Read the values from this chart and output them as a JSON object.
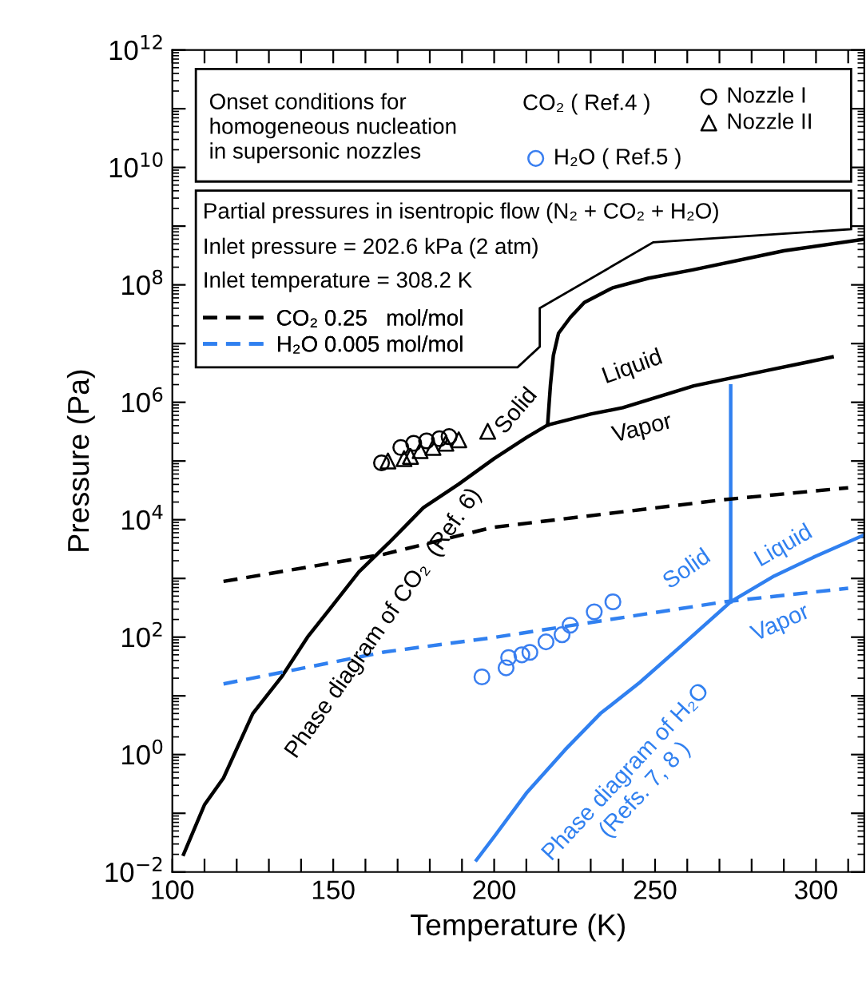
{
  "chart_data": {
    "type": "line",
    "xlabel": "Temperature (K)",
    "ylabel": "Pressure (Pa)",
    "log": "y",
    "xlim": [
      100,
      315
    ],
    "ylim": [
      0.01,
      1000000000000.0
    ],
    "xticks": [
      100,
      {
        "value": 110,
        "label": null
      },
      {
        "value": 120,
        "label": null
      },
      {
        "value": 130,
        "label": null
      },
      {
        "value": 140,
        "label": null
      },
      150,
      {
        "value": 160,
        "label": null
      },
      {
        "value": 170,
        "label": null
      },
      {
        "value": 180,
        "label": null
      },
      {
        "value": 190,
        "label": null
      },
      200,
      {
        "value": 210,
        "label": null
      },
      {
        "value": 220,
        "label": null
      },
      {
        "value": 230,
        "label": null
      },
      {
        "value": 240,
        "label": null
      },
      250,
      {
        "value": 260,
        "label": null
      },
      {
        "value": 270,
        "label": null
      },
      {
        "value": 280,
        "label": null
      },
      {
        "value": 290,
        "label": null
      },
      300,
      {
        "value": 310,
        "label": null
      }
    ],
    "yticks": [
      {
        "value": 0.01,
        "label": "10$^{−2}$"
      },
      {
        "value": 0.1,
        "label": null
      },
      {
        "value": 1,
        "label": "10$^{0}$"
      },
      {
        "value": 10,
        "label": null
      },
      {
        "value": 100,
        "label": "10$^{2}$"
      },
      {
        "value": 1000,
        "label": null
      },
      {
        "value": 10000,
        "label": "10$^{4}$"
      },
      {
        "value": 100000,
        "label": null
      },
      {
        "value": 1000000,
        "label": "10$^{6}$"
      },
      {
        "value": 10000000,
        "label": null
      },
      {
        "value": 100000000,
        "label": "10$^{8}$"
      },
      {
        "value": 1000000000,
        "label": null
      },
      {
        "value": 10000000000,
        "label": "10$^{10}$"
      },
      {
        "value": 100000000000,
        "label": null
      },
      {
        "value": 1000000000000,
        "label": "10$^{12}$"
      }
    ],
    "grid": false,
    "legend": "top left",
    "series": [
      {
        "color": "#000000",
        "line_style": "solid",
        "x": [
          103.5,
          110,
          115.9,
          125,
          134.2,
          142,
          150.7,
          158,
          167.2,
          178,
          188.9,
          200,
          210,
          216.6,
          230,
          240,
          262,
          285,
          305
        ],
        "values": [
          0.02,
          0.14,
          0.4,
          5,
          22,
          100,
          400,
          1300,
          4000,
          16000,
          40000,
          110000,
          250000,
          410000,
          630000,
          810000,
          1900000,
          3500000,
          5900000
        ]
      },
      {
        "color": "#000000",
        "line_style": "solid",
        "x": [
          216.6,
          217.5,
          218.4,
          220,
          223.7,
          228,
          236.8,
          248,
          261.7,
          290,
          315
        ],
        "values": [
          410000,
          2000000,
          6300000,
          15000000,
          28000000,
          50000000,
          89000000,
          130000000,
          180000000,
          380000000,
          600000000
        ]
      },
      {
        "color": "#3080f0",
        "line_style": "solid",
        "x": [
          194.5,
          200,
          210,
          222,
          233,
          245.3,
          258,
          273.5,
          287,
          300,
          315
        ],
        "values": [
          0.016,
          0.04,
          0.22,
          1.2,
          5,
          17,
          70,
          400,
          1100,
          2400,
          5500
        ]
      },
      {
        "color": "#3080f0",
        "line_style": "solid",
        "x": [
          273.5,
          273.5
        ],
        "values": [
          400,
          1900000
        ]
      },
      {
        "name": "CO₂ 0.25   mol/mol",
        "color": "#000000",
        "line_style": "dashed",
        "x": [
          115.9,
          166,
          199.5,
          271.6,
          310
        ],
        "values": [
          890,
          2600,
          7400,
          22000,
          35000
        ]
      },
      {
        "name": "H₂O 0.005 mol/mol",
        "color": "#3080f0",
        "line_style": "dashed",
        "x": [
          115.9,
          166,
          199.5,
          271.6,
          310
        ],
        "values": [
          16,
          56,
          98,
          400,
          680
        ]
      },
      {
        "type": "scatter",
        "name": "Nozzle I",
        "color": "#000000",
        "marker": "circle",
        "x": [
          165,
          171,
          175,
          179,
          183,
          186
        ],
        "values": [
          93000,
          170000,
          200000,
          220000,
          240000,
          260000
        ]
      },
      {
        "type": "scatter",
        "name": "Nozzle II",
        "color": "#000000",
        "marker": "triangle",
        "x": [
          167,
          172,
          174,
          177,
          181,
          185,
          189,
          198
        ],
        "values": [
          100000,
          110000,
          120000,
          150000,
          170000,
          200000,
          230000,
          320000
        ]
      },
      {
        "type": "scatter",
        "name": "H₂O ( Ref.5 )",
        "color": "#3a7ff0",
        "marker": "circle",
        "x": [
          196.2,
          203.7,
          204.5,
          208.6,
          211.1,
          216.1,
          221.1,
          223.6,
          231.1,
          236.9
        ],
        "values": [
          21,
          30,
          45,
          50,
          55,
          83,
          110,
          160,
          270,
          400
        ]
      }
    ],
    "annotations": [
      "Onset conditions for\nhomogeneous nucleation\nin supersonic nozzles",
      "CO₂ ( Ref.4 )",
      "Partial pressures in isentropic flow (N₂ + CO₂ + H₂O)",
      "Inlet pressure = 202.6 kPa (2 atm)",
      "Inlet temperature = 308.2 K",
      "Solid",
      "Liquid",
      "Vapor",
      "Phase diagram of CO₂  (Ref. 6)",
      "Solid",
      "Liquid",
      "Vapor",
      "Phase diagram of H₂O\n(Refs. 7, 8 )"
    ]
  }
}
